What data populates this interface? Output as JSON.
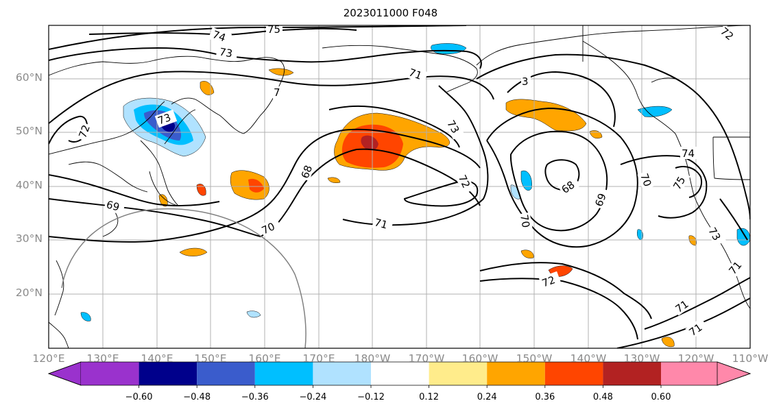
{
  "title": "2023011000 F048",
  "map": {
    "lat_labels": [
      "60°N",
      "50°N",
      "40°N",
      "30°N",
      "20°N"
    ],
    "lon_labels": [
      "120°E",
      "130°E",
      "140°E",
      "150°E",
      "160°E",
      "170°E",
      "180°W",
      "170°W",
      "160°W",
      "150°W",
      "140°W",
      "130°W",
      "120°W",
      "110°W"
    ],
    "contour_labels": [
      "75",
      "74",
      "73",
      "72",
      "70",
      "73",
      "71",
      "3",
      "73",
      "68",
      "72",
      "71",
      "68",
      "69",
      "70",
      "72",
      "74",
      "75",
      "73",
      "71",
      "71",
      "69",
      "70",
      "71",
      "72",
      "7"
    ]
  },
  "colorbar": {
    "ticks": [
      "−0.60",
      "−0.48",
      "−0.36",
      "−0.24",
      "−0.12",
      "0.12",
      "0.24",
      "0.36",
      "0.48",
      "0.60"
    ],
    "colors": [
      "#9a32cd",
      "#00008b",
      "#3a5ccc",
      "#00bfff",
      "#b0e2ff",
      "#ffffff",
      "#ffec8b",
      "#ffa500",
      "#ff4500",
      "#b22222",
      "#ff88aa"
    ]
  }
}
